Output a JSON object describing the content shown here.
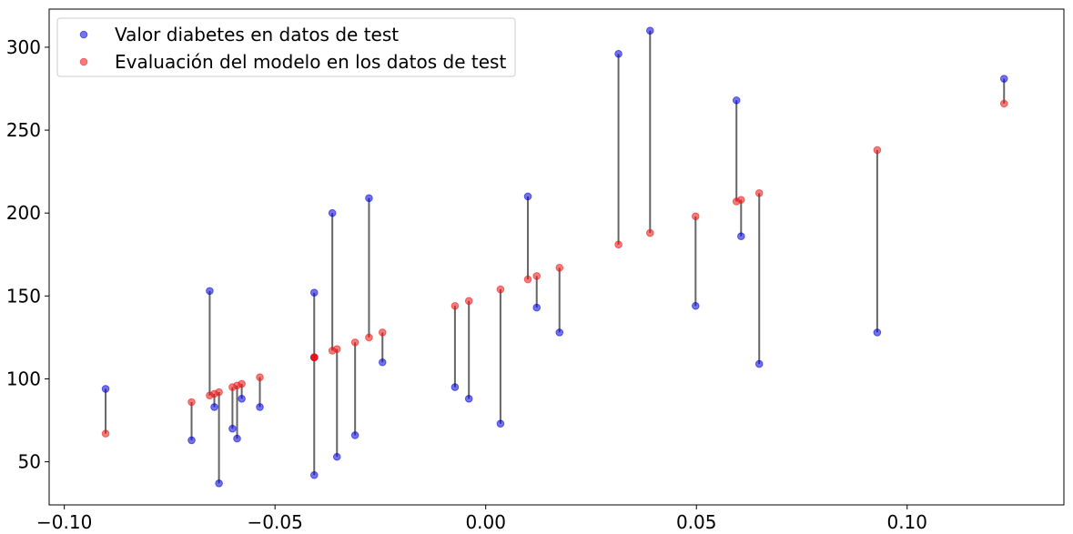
{
  "chart_data": {
    "type": "scatter",
    "title": "",
    "xlabel": "",
    "ylabel": "",
    "xlim": [
      -0.1036,
      0.1372
    ],
    "ylim": [
      24,
      323
    ],
    "grid": false,
    "legend_position": "top-left",
    "x_ticks": [
      {
        "value": -0.1,
        "label": "−0.10"
      },
      {
        "value": -0.05,
        "label": "−0.05"
      },
      {
        "value": 0.0,
        "label": "0.00"
      },
      {
        "value": 0.05,
        "label": "0.05"
      },
      {
        "value": 0.1,
        "label": "0.10"
      }
    ],
    "y_ticks": [
      {
        "value": 50,
        "label": "50"
      },
      {
        "value": 100,
        "label": "100"
      },
      {
        "value": 150,
        "label": "150"
      },
      {
        "value": 200,
        "label": "200"
      },
      {
        "value": 250,
        "label": "250"
      },
      {
        "value": 300,
        "label": "300"
      }
    ],
    "series": [
      {
        "name": "Valor diabetes en datos de test",
        "color": "#0000dd",
        "points": [
          [
            -0.0902,
            94
          ],
          [
            -0.0698,
            63
          ],
          [
            -0.0655,
            153
          ],
          [
            -0.0644,
            83
          ],
          [
            -0.0633,
            37
          ],
          [
            -0.0601,
            70
          ],
          [
            -0.059,
            64
          ],
          [
            -0.0579,
            88
          ],
          [
            -0.0536,
            83
          ],
          [
            -0.0407,
            42
          ],
          [
            -0.0407,
            152
          ],
          [
            -0.0407,
            113
          ],
          [
            -0.0364,
            200
          ],
          [
            -0.0353,
            53
          ],
          [
            -0.031,
            66
          ],
          [
            -0.0277,
            209
          ],
          [
            -0.0245,
            110
          ],
          [
            -0.0073,
            95
          ],
          [
            -0.004,
            88
          ],
          [
            0.0035,
            73
          ],
          [
            0.01,
            210
          ],
          [
            0.0121,
            143
          ],
          [
            0.0175,
            128
          ],
          [
            0.0315,
            296
          ],
          [
            0.039,
            310
          ],
          [
            0.0498,
            144
          ],
          [
            0.0595,
            268
          ],
          [
            0.0606,
            186
          ],
          [
            0.0649,
            109
          ],
          [
            0.0929,
            128
          ],
          [
            0.123,
            281
          ]
        ]
      },
      {
        "name": "Evaluación del modelo en los datos de test",
        "color": "#ee1111",
        "points": [
          [
            -0.0902,
            67
          ],
          [
            -0.0698,
            86
          ],
          [
            -0.0655,
            90
          ],
          [
            -0.0644,
            91
          ],
          [
            -0.0633,
            92
          ],
          [
            -0.0601,
            95
          ],
          [
            -0.059,
            96
          ],
          [
            -0.0579,
            97
          ],
          [
            -0.0536,
            101
          ],
          [
            -0.0407,
            113
          ],
          [
            -0.0407,
            113
          ],
          [
            -0.0407,
            113
          ],
          [
            -0.0364,
            117
          ],
          [
            -0.0353,
            118
          ],
          [
            -0.031,
            122
          ],
          [
            -0.0277,
            125
          ],
          [
            -0.0245,
            128
          ],
          [
            -0.0073,
            144
          ],
          [
            -0.004,
            147
          ],
          [
            0.0035,
            154
          ],
          [
            0.01,
            160
          ],
          [
            0.0121,
            162
          ],
          [
            0.0175,
            167
          ],
          [
            0.0315,
            181
          ],
          [
            0.039,
            188
          ],
          [
            0.0498,
            198
          ],
          [
            0.0595,
            207
          ],
          [
            0.0606,
            208
          ],
          [
            0.0649,
            212
          ],
          [
            0.0929,
            238
          ],
          [
            0.123,
            266
          ]
        ]
      }
    ],
    "connector_color": "#555555"
  }
}
